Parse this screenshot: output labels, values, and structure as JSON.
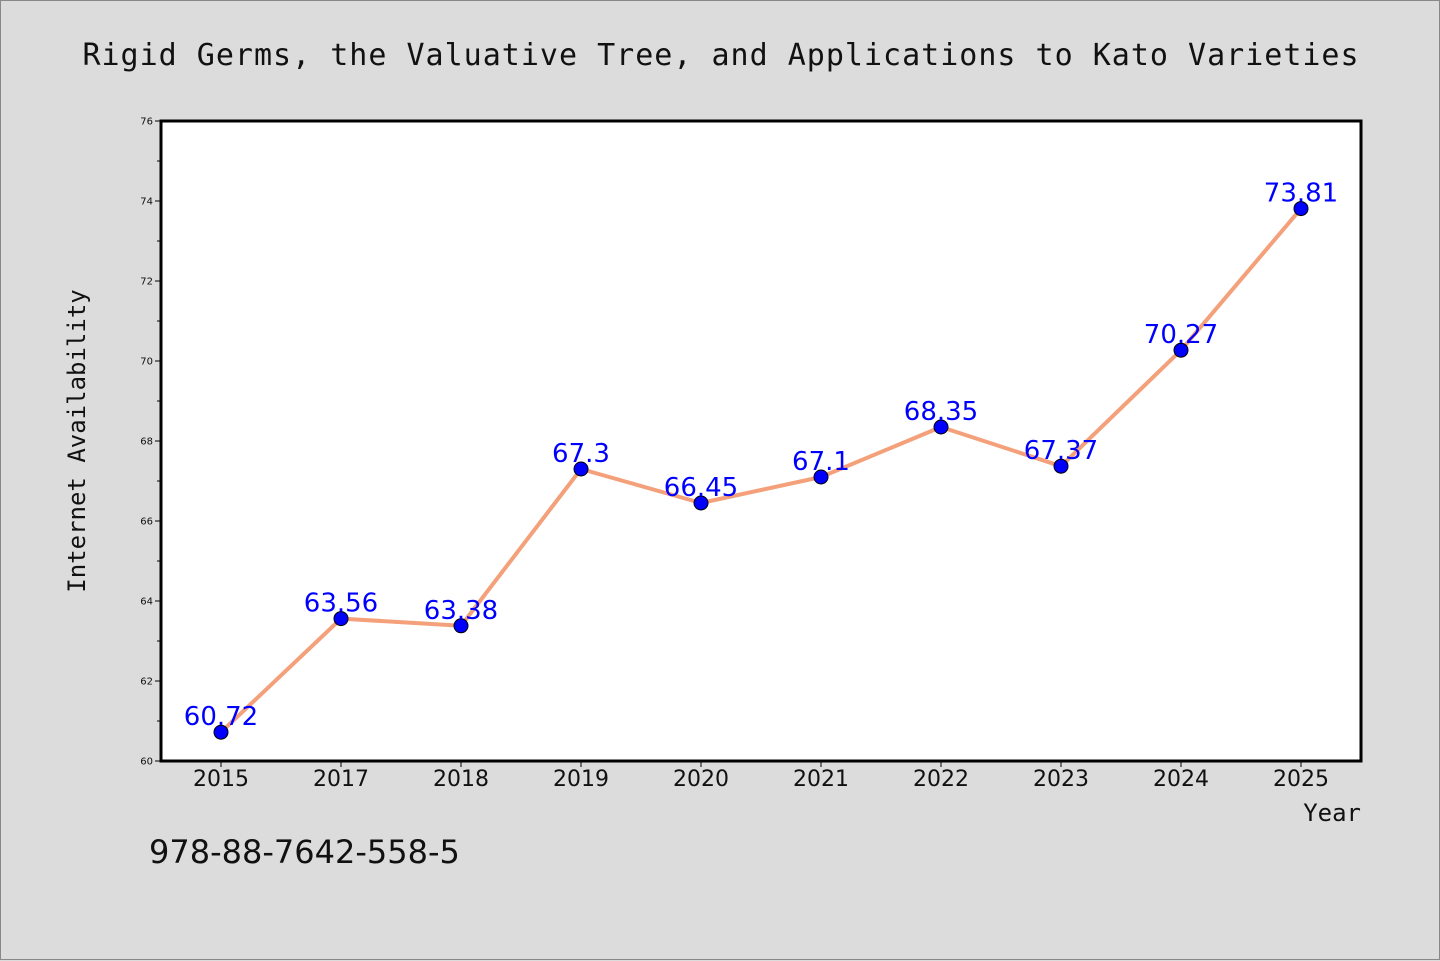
{
  "chart_data": {
    "type": "line",
    "title": "Rigid Germs, the Valuative Tree, and Applications to Kato Varieties",
    "xlabel": "Year",
    "ylabel": "Internet Availability",
    "categories": [
      "2015",
      "2017",
      "2018",
      "2019",
      "2020",
      "2021",
      "2022",
      "2023",
      "2024",
      "2025"
    ],
    "series": [
      {
        "values": [
          60.72,
          63.56,
          63.38,
          67.3,
          66.45,
          67.1,
          68.35,
          67.37,
          70.27,
          73.81
        ],
        "labels": [
          "60.72",
          "63.56",
          "63.38",
          "67.3",
          "66.45",
          "67.1",
          "68.35",
          "67.37",
          "70.27",
          "73.81"
        ],
        "line_color": "#f4a07a",
        "marker_color": "#0000ff"
      }
    ],
    "ylim": [
      60,
      76
    ],
    "yticks": [
      60,
      62,
      64,
      66,
      68,
      70,
      72,
      74,
      76
    ],
    "ytick_labels": [
      "60",
      "62",
      "64",
      "66",
      "68",
      "70",
      "72",
      "74",
      "76"
    ],
    "grid": false,
    "legend": "none"
  },
  "footer": {
    "isbn": "978-88-7642-558-5"
  }
}
